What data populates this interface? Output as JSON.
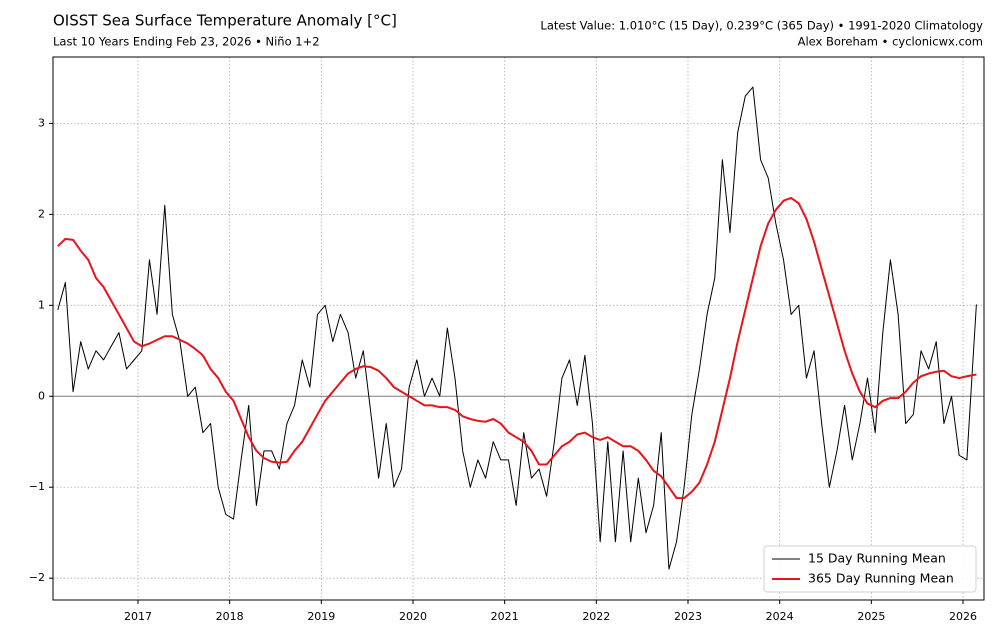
{
  "chart_data": {
    "type": "line",
    "title": "OISST Sea Surface Temperature Anomaly [°C]",
    "subtitle": "Last 10 Years Ending Feb 23, 2026 • Niño 1+2",
    "annotations": [
      "Latest Value: 1.010°C (15 Day), 0.239°C (365 Day) • 1991-2020 Climatology",
      "Alex Boreham • cyclonicwx.com"
    ],
    "x": [
      2016.125,
      2016.208,
      2016.292,
      2016.375,
      2016.458,
      2016.542,
      2016.625,
      2016.708,
      2016.792,
      2016.875,
      2016.958,
      2017.042,
      2017.125,
      2017.208,
      2017.292,
      2017.375,
      2017.458,
      2017.542,
      2017.625,
      2017.708,
      2017.792,
      2017.875,
      2017.958,
      2018.042,
      2018.125,
      2018.208,
      2018.292,
      2018.375,
      2018.458,
      2018.542,
      2018.625,
      2018.708,
      2018.792,
      2018.875,
      2018.958,
      2019.042,
      2019.125,
      2019.208,
      2019.292,
      2019.375,
      2019.458,
      2019.542,
      2019.625,
      2019.708,
      2019.792,
      2019.875,
      2019.958,
      2020.042,
      2020.125,
      2020.208,
      2020.292,
      2020.375,
      2020.458,
      2020.542,
      2020.625,
      2020.708,
      2020.792,
      2020.875,
      2020.958,
      2021.042,
      2021.125,
      2021.208,
      2021.292,
      2021.375,
      2021.458,
      2021.542,
      2021.625,
      2021.708,
      2021.792,
      2021.875,
      2021.958,
      2022.042,
      2022.125,
      2022.208,
      2022.292,
      2022.375,
      2022.458,
      2022.542,
      2022.625,
      2022.708,
      2022.792,
      2022.875,
      2022.958,
      2023.042,
      2023.125,
      2023.208,
      2023.292,
      2023.375,
      2023.458,
      2023.542,
      2023.625,
      2023.708,
      2023.792,
      2023.875,
      2023.958,
      2024.042,
      2024.125,
      2024.208,
      2024.292,
      2024.375,
      2024.458,
      2024.542,
      2024.625,
      2024.708,
      2024.792,
      2024.875,
      2024.958,
      2025.042,
      2025.125,
      2025.208,
      2025.292,
      2025.375,
      2025.458,
      2025.542,
      2025.625,
      2025.708,
      2025.792,
      2025.875,
      2025.958,
      2026.042,
      2026.146
    ],
    "series": [
      {
        "name": "15 Day Running Mean",
        "color": "#000000",
        "values": [
          0.95,
          1.25,
          0.05,
          0.6,
          0.3,
          0.5,
          0.4,
          0.55,
          0.7,
          0.3,
          0.4,
          0.5,
          1.5,
          0.9,
          2.1,
          0.9,
          0.6,
          0.0,
          0.1,
          -0.4,
          -0.3,
          -1.0,
          -1.3,
          -1.35,
          -0.7,
          -0.1,
          -1.2,
          -0.6,
          -0.6,
          -0.8,
          -0.3,
          -0.1,
          0.4,
          0.1,
          0.9,
          1.0,
          0.6,
          0.9,
          0.7,
          0.2,
          0.5,
          -0.2,
          -0.9,
          -0.3,
          -1.0,
          -0.8,
          0.1,
          0.4,
          0.0,
          0.2,
          0.0,
          0.75,
          0.2,
          -0.6,
          -1.0,
          -0.7,
          -0.9,
          -0.5,
          -0.7,
          -0.7,
          -1.2,
          -0.4,
          -0.9,
          -0.8,
          -1.1,
          -0.5,
          0.2,
          0.4,
          -0.1,
          0.45,
          -0.3,
          -1.6,
          -0.5,
          -1.6,
          -0.6,
          -1.6,
          -0.9,
          -1.5,
          -1.2,
          -0.4,
          -1.9,
          -1.6,
          -1.0,
          -0.2,
          0.3,
          0.9,
          1.3,
          2.6,
          1.8,
          2.9,
          3.3,
          3.4,
          2.6,
          2.4,
          1.9,
          1.5,
          0.9,
          1.0,
          0.2,
          0.5,
          -0.3,
          -1.0,
          -0.6,
          -0.1,
          -0.7,
          -0.3,
          0.2,
          -0.4,
          0.7,
          1.5,
          0.9,
          -0.3,
          -0.2,
          0.5,
          0.3,
          0.6,
          -0.3,
          0.0,
          -0.65,
          -0.7,
          1.01
        ]
      },
      {
        "name": "365 Day Running Mean",
        "color": "#e8141a",
        "values": [
          1.65,
          1.73,
          1.72,
          1.6,
          1.5,
          1.3,
          1.2,
          1.05,
          0.9,
          0.75,
          0.6,
          0.55,
          0.58,
          0.62,
          0.66,
          0.66,
          0.62,
          0.58,
          0.52,
          0.45,
          0.3,
          0.2,
          0.05,
          -0.05,
          -0.25,
          -0.45,
          -0.6,
          -0.68,
          -0.72,
          -0.73,
          -0.72,
          -0.6,
          -0.5,
          -0.35,
          -0.2,
          -0.05,
          0.05,
          0.15,
          0.25,
          0.3,
          0.33,
          0.32,
          0.28,
          0.2,
          0.1,
          0.05,
          0.0,
          -0.05,
          -0.1,
          -0.1,
          -0.12,
          -0.12,
          -0.15,
          -0.22,
          -0.25,
          -0.27,
          -0.28,
          -0.25,
          -0.3,
          -0.4,
          -0.45,
          -0.5,
          -0.6,
          -0.75,
          -0.75,
          -0.65,
          -0.55,
          -0.5,
          -0.42,
          -0.4,
          -0.45,
          -0.48,
          -0.45,
          -0.5,
          -0.55,
          -0.55,
          -0.6,
          -0.7,
          -0.82,
          -0.88,
          -1.0,
          -1.12,
          -1.12,
          -1.05,
          -0.95,
          -0.75,
          -0.5,
          -0.15,
          0.2,
          0.6,
          0.95,
          1.3,
          1.65,
          1.9,
          2.05,
          2.15,
          2.18,
          2.12,
          1.95,
          1.7,
          1.4,
          1.1,
          0.8,
          0.5,
          0.25,
          0.05,
          -0.08,
          -0.12,
          -0.05,
          -0.02,
          -0.02,
          0.05,
          0.15,
          0.22,
          0.25,
          0.27,
          0.28,
          0.22,
          0.2,
          0.22,
          0.239
        ]
      }
    ],
    "xlim": [
      2016.073,
      2026.229
    ],
    "xticks": [
      2017,
      2018,
      2019,
      2020,
      2021,
      2022,
      2023,
      2024,
      2025,
      2026
    ],
    "ylim": [
      -2.24,
      3.73
    ],
    "yticks": [
      {
        "value": -2,
        "label": "−2"
      },
      {
        "value": -1,
        "label": "−1"
      },
      0,
      1,
      2,
      3
    ],
    "grid": true,
    "legend": "lower right"
  }
}
